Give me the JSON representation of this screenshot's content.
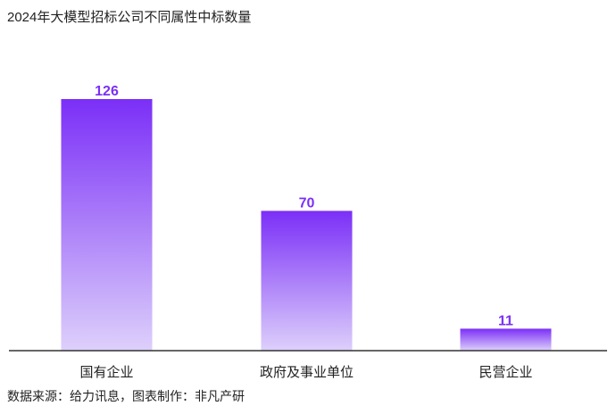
{
  "title": "2024年大模型招标公司不同属性中标数量",
  "source": "数据来源：给力讯息，图表制作：非凡产研",
  "colors": {
    "bar_top": "#7b2ff7",
    "bar_bottom": "#ddd0fb",
    "value_text": "#7b2ff7",
    "axis": "#333333"
  },
  "chart_data": {
    "type": "bar",
    "categories": [
      "国有企业",
      "政府及事业单位",
      "民营企业"
    ],
    "values": [
      126,
      70,
      11
    ],
    "title": "2024年大模型招标公司不同属性中标数量",
    "xlabel": "",
    "ylabel": "",
    "ylim": [
      0,
      140
    ],
    "grid": false,
    "data_labels": true
  }
}
